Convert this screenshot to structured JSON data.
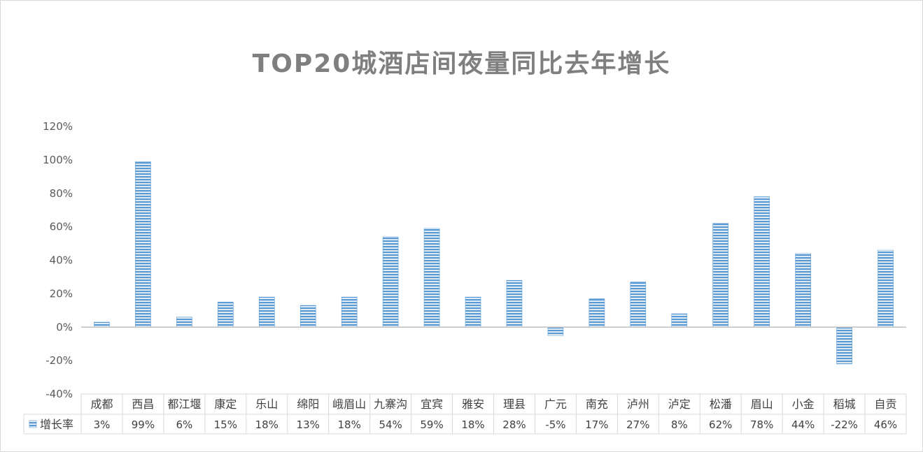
{
  "chart_data": {
    "type": "bar",
    "title": "TOP20城酒店间夜量同比去年增长",
    "categories": [
      "成都",
      "西昌",
      "都江堰",
      "康定",
      "乐山",
      "绵阳",
      "峨眉山",
      "九寨沟",
      "宜宾",
      "雅安",
      "理县",
      "广元",
      "南充",
      "泸州",
      "泸定",
      "松潘",
      "眉山",
      "小金",
      "稻城",
      "自贡"
    ],
    "series": [
      {
        "name": "增长率",
        "values": [
          3,
          99,
          6,
          15,
          18,
          13,
          18,
          54,
          59,
          18,
          28,
          -5,
          17,
          27,
          8,
          62,
          78,
          44,
          -22,
          46
        ],
        "labels": [
          "3%",
          "99%",
          "6%",
          "15%",
          "18%",
          "13%",
          "18%",
          "54%",
          "59%",
          "18%",
          "28%",
          "-5%",
          "17%",
          "27%",
          "8%",
          "62%",
          "78%",
          "44%",
          "-22%",
          "46%"
        ]
      }
    ],
    "ylim": [
      -40,
      120
    ],
    "yticks": [
      -40,
      -20,
      0,
      20,
      40,
      60,
      80,
      100,
      120
    ],
    "ytick_labels": [
      "-40%",
      "-20%",
      "0%",
      "20%",
      "40%",
      "60%",
      "80%",
      "100%",
      "120%"
    ],
    "grid": false,
    "legend": "bottom-left data table",
    "bar_color": "#5b9bd5",
    "bar_stripe_color": "#ffffff",
    "axis_color": "#bfbfbf",
    "table_border_color": "#d9d9d9"
  }
}
